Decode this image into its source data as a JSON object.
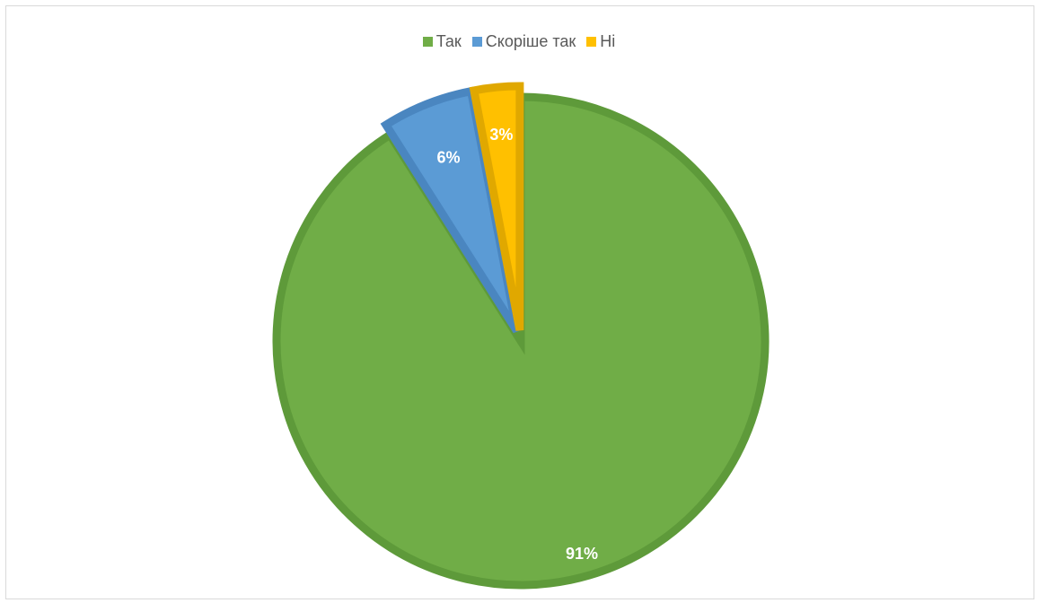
{
  "chart_data": {
    "type": "pie",
    "title": "",
    "categories": [
      "Так",
      "Скоріше так",
      "Ні"
    ],
    "values": [
      91,
      6,
      3
    ],
    "data_labels": [
      "91%",
      "6%",
      "3%"
    ],
    "colors": [
      "#70AD47",
      "#5B9BD5",
      "#FFC000"
    ],
    "border_colors": [
      "#5E9A3A",
      "#4A86C0",
      "#E0A800"
    ],
    "legend_position": "top"
  }
}
